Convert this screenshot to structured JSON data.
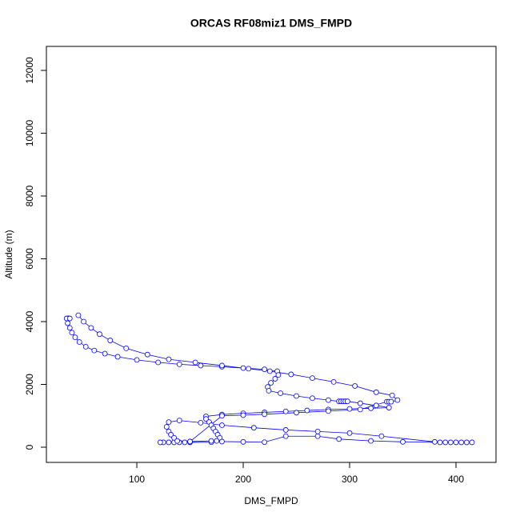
{
  "chart_data": {
    "type": "scatter",
    "title": "ORCAS RF08miz1 DMS_FMPD",
    "x_label": "DMS_FMPD",
    "y_label": "Altitude (m)",
    "color": "#0000ff",
    "x": [
      35,
      36,
      34,
      37,
      35,
      37,
      39,
      42,
      46,
      52,
      60,
      70,
      82,
      100,
      120,
      140,
      160,
      180,
      200,
      220,
      232,
      233,
      230,
      226,
      223,
      224,
      235,
      250,
      265,
      280,
      290,
      292,
      294,
      296,
      298,
      310,
      325,
      337,
      320,
      300,
      280,
      260,
      240,
      220,
      200,
      180,
      165,
      165,
      168,
      170,
      172,
      174,
      176,
      178,
      175,
      170,
      150,
      145,
      140,
      135,
      130,
      125,
      122,
      150,
      170,
      180,
      200,
      220,
      240,
      270,
      290,
      320,
      350,
      385,
      390,
      395,
      400,
      405,
      410,
      415,
      380,
      330,
      300,
      270,
      240,
      210,
      180,
      160,
      140,
      130,
      128,
      130,
      132,
      135,
      138,
      150,
      180,
      200,
      220,
      250,
      280,
      310,
      335,
      337,
      339,
      345,
      340,
      325,
      305,
      285,
      265,
      245,
      225,
      205,
      180,
      155,
      130,
      110,
      90,
      75,
      65,
      57,
      50,
      45
    ],
    "values": [
      4100,
      4100,
      4100,
      4100,
      3950,
      3800,
      3650,
      3500,
      3350,
      3200,
      3080,
      2980,
      2880,
      2780,
      2700,
      2640,
      2600,
      2560,
      2520,
      2480,
      2420,
      2300,
      2180,
      2050,
      1920,
      1800,
      1720,
      1630,
      1560,
      1500,
      1460,
      1460,
      1460,
      1460,
      1460,
      1400,
      1330,
      1260,
      1240,
      1220,
      1200,
      1170,
      1140,
      1110,
      1080,
      1040,
      980,
      900,
      800,
      700,
      600,
      500,
      400,
      300,
      200,
      160,
      155,
      155,
      155,
      155,
      155,
      155,
      155,
      180,
      200,
      180,
      170,
      160,
      350,
      350,
      260,
      200,
      170,
      155,
      155,
      155,
      155,
      155,
      155,
      155,
      170,
      350,
      450,
      500,
      550,
      620,
      700,
      780,
      850,
      800,
      650,
      500,
      400,
      300,
      200,
      180,
      1000,
      1020,
      1050,
      1100,
      1150,
      1200,
      1450,
      1450,
      1450,
      1500,
      1650,
      1750,
      1950,
      2080,
      2200,
      2320,
      2420,
      2500,
      2600,
      2700,
      2800,
      2950,
      3150,
      3400,
      3600,
      3800,
      4000,
      4200
    ],
    "xlim": [
      15,
      437.6
    ],
    "ylim": [
      -484,
      12764
    ],
    "xticks": [
      100,
      200,
      300,
      400
    ],
    "yticks": [
      0,
      2000,
      4000,
      6000,
      8000,
      10000,
      12000
    ]
  }
}
